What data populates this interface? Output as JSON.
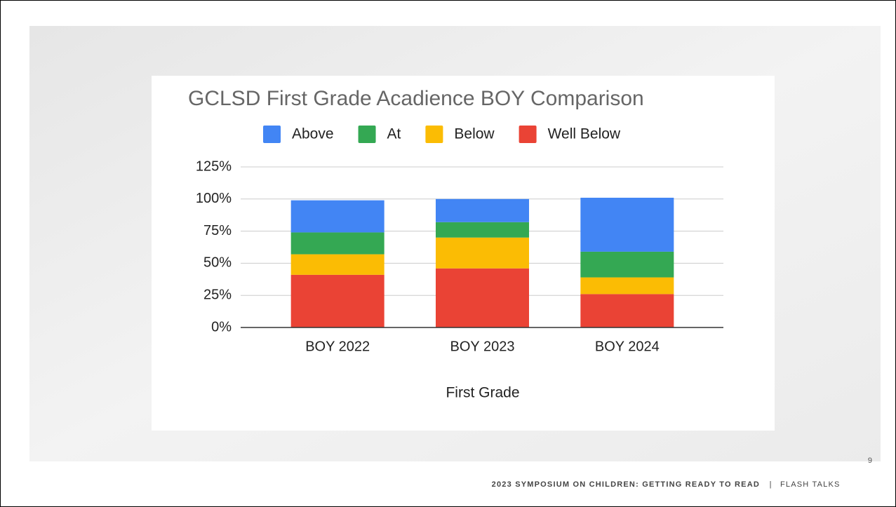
{
  "chart_data": {
    "type": "stacked_bar",
    "title": "GCLSD First Grade Acadience BOY Comparison",
    "x_label": "First Grade",
    "categories": [
      "BOY 2022",
      "BOY 2023",
      "BOY 2024"
    ],
    "series": [
      {
        "name": "Above",
        "color": "#4285f4",
        "values": [
          25,
          18,
          42
        ]
      },
      {
        "name": "At",
        "color": "#34a853",
        "values": [
          17,
          12,
          20
        ]
      },
      {
        "name": "Below",
        "color": "#fbbc04",
        "values": [
          16,
          24,
          13
        ]
      },
      {
        "name": "Well Below",
        "color": "#ea4335",
        "values": [
          41,
          46,
          26
        ]
      }
    ],
    "ylim": [
      0,
      125
    ],
    "yticks": [
      {
        "value": 0,
        "label": "0%"
      },
      {
        "value": 25,
        "label": "25%"
      },
      {
        "value": 50,
        "label": "50%"
      },
      {
        "value": 75,
        "label": "75%"
      },
      {
        "value": 100,
        "label": "100%"
      },
      {
        "value": 125,
        "label": "125%"
      }
    ],
    "grid": true,
    "legend": "top"
  },
  "slide": {
    "page_number": "9",
    "footer": [
      "2023 SYMPOSIUM ON CHILDREN: GETTING READY TO READ",
      "|",
      "FLASH TALKS"
    ]
  }
}
